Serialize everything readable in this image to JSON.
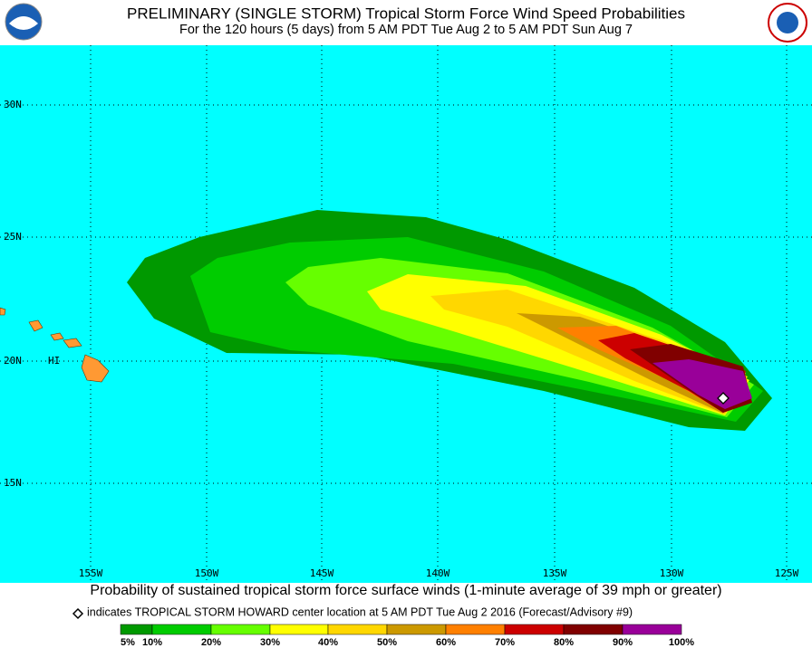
{
  "header": {
    "title": "PRELIMINARY (SINGLE STORM) Tropical Storm Force Wind Speed Probabilities",
    "subtitle": "For the 120 hours (5 days) from 5 AM PDT Tue Aug 2 to 5 AM PDT Sun Aug 7"
  },
  "map": {
    "lat_labels": [
      "30N",
      "25N",
      "20N",
      "15N"
    ],
    "lon_labels": [
      "155W",
      "150W",
      "145W",
      "140W",
      "135W",
      "130W",
      "125W"
    ],
    "place_label": "HI"
  },
  "footer": {
    "caption": "Probability of sustained tropical storm force surface winds (1-minute average of 39 mph or greater)",
    "note": "indicates TROPICAL STORM HOWARD center location at 5 AM PDT Tue Aug 2 2016 (Forecast/Advisory #9)"
  },
  "legend": {
    "labels": [
      "5%",
      "10%",
      "20%",
      "30%",
      "40%",
      "50%",
      "60%",
      "70%",
      "80%",
      "90%",
      "100%"
    ],
    "colors": [
      "#009900",
      "#00cc00",
      "#66ff00",
      "#ffff00",
      "#ffd700",
      "#cc9900",
      "#ff8000",
      "#cc0000",
      "#800000",
      "#990099"
    ]
  }
}
